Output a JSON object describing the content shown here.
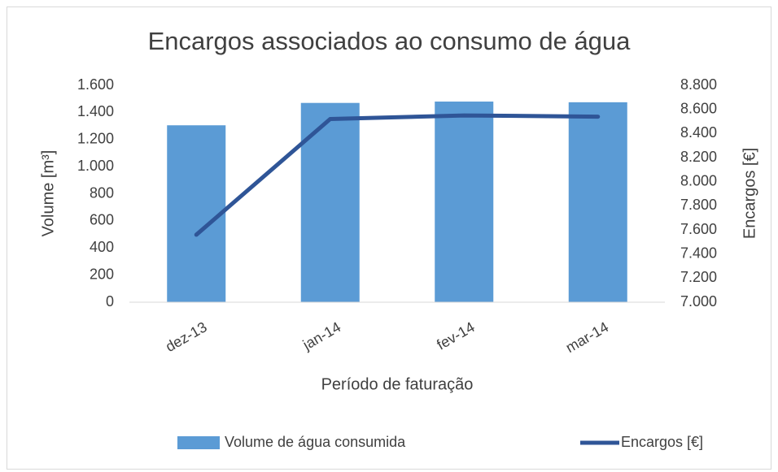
{
  "chart_data": {
    "type": "bar_line",
    "title": "Encargos associados ao consumo de água",
    "x_label": "Período de faturação",
    "y_label": "Volume [m³]",
    "y2_label": "Encargos [€]",
    "categories": [
      "dez-13",
      "jan-14",
      "fev-14",
      "mar-14"
    ],
    "series": [
      {
        "name": "Volume de água consumida",
        "type": "bar",
        "color": "#5b9bd5",
        "values": [
          1305,
          1470,
          1480,
          1475
        ]
      },
      {
        "name": "Encargos [€]",
        "type": "line",
        "axis": "y2",
        "color": "#2f5597",
        "values": [
          7560,
          8520,
          8550,
          8540
        ]
      }
    ],
    "ylim": [
      0,
      1600
    ],
    "yticks": [
      0,
      200,
      400,
      600,
      800,
      {
        "value": 1000,
        "label": "1.000"
      },
      {
        "value": 1200,
        "label": "1.200"
      },
      {
        "value": 1400,
        "label": "1.400"
      },
      {
        "value": 1600,
        "label": "1.600"
      }
    ],
    "y2lim": [
      7000,
      8800
    ],
    "y2ticks": [
      {
        "value": 7000,
        "label": "7.000"
      },
      {
        "value": 7200,
        "label": "7.200"
      },
      {
        "value": 7400,
        "label": "7.400"
      },
      {
        "value": 7600,
        "label": "7.600"
      },
      {
        "value": 7800,
        "label": "7.800"
      },
      {
        "value": 8000,
        "label": "8.000"
      },
      {
        "value": 8200,
        "label": "8.200"
      },
      {
        "value": 8400,
        "label": "8.400"
      },
      {
        "value": 8600,
        "label": "8.600"
      },
      {
        "value": 8800,
        "label": "8.800"
      }
    ],
    "legend": "bottom"
  }
}
